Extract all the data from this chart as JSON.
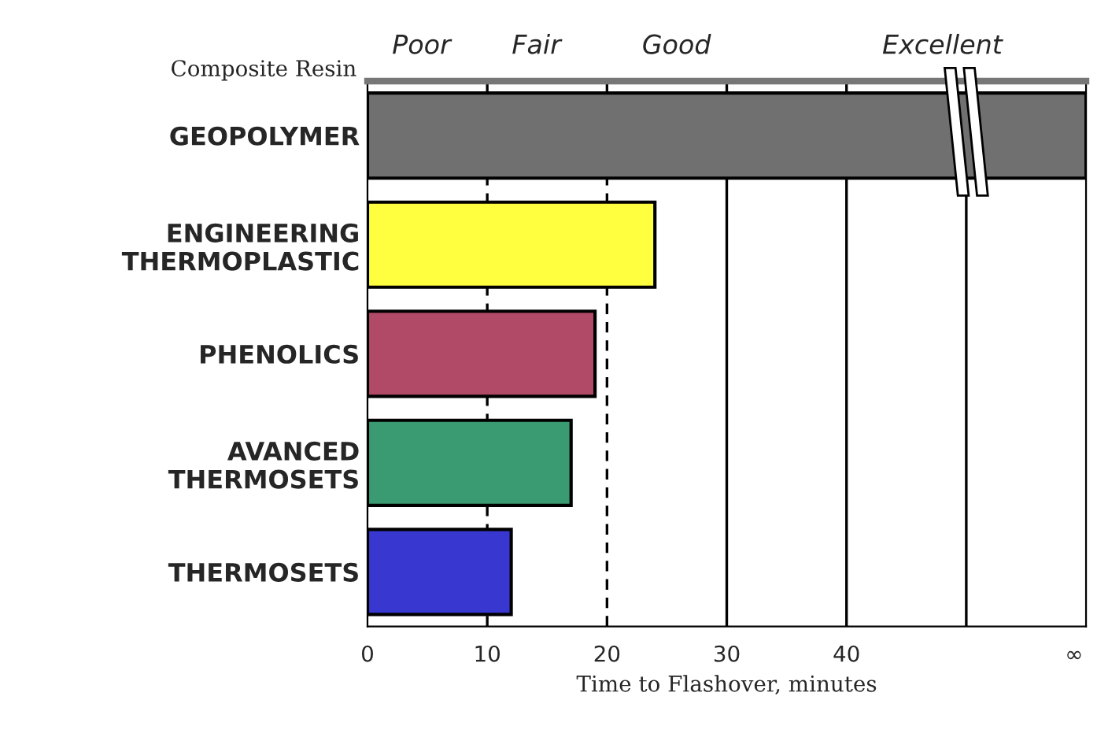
{
  "chart_data": {
    "type": "bar",
    "orientation": "horizontal",
    "ylabel": "Composite Resin",
    "xlabel": "Time to Flashover, minutes",
    "categories": [
      "GEOPOLYMER",
      "ENGINEERING\nTHERMOPLASTIC",
      "PHENOLICS",
      "AVANCED\nTHERMOSETS",
      "THERMOSETS"
    ],
    "values": [
      60,
      24,
      19,
      17,
      12
    ],
    "colors": [
      "#707070",
      "#ffff40",
      "#b04a66",
      "#3a9a72",
      "#3838d0"
    ],
    "xlim": [
      0,
      60
    ],
    "xticks": [
      0,
      10,
      20,
      30,
      40,
      {
        "value": 59,
        "label": "∞"
      }
    ],
    "ref_lines": [
      {
        "axis": "x",
        "value": 10,
        "line_style": "dashed"
      },
      {
        "axis": "x",
        "value": 20,
        "line_style": "dashed"
      },
      {
        "axis": "x",
        "value": 30,
        "line_style": "solid"
      },
      {
        "axis": "x",
        "value": 40,
        "line_style": "solid"
      },
      {
        "axis": "x",
        "value": 50,
        "line_style": "solid"
      }
    ],
    "annotations": [
      "Poor",
      "Fair",
      "Good",
      "Excellent"
    ],
    "grid": false
  }
}
